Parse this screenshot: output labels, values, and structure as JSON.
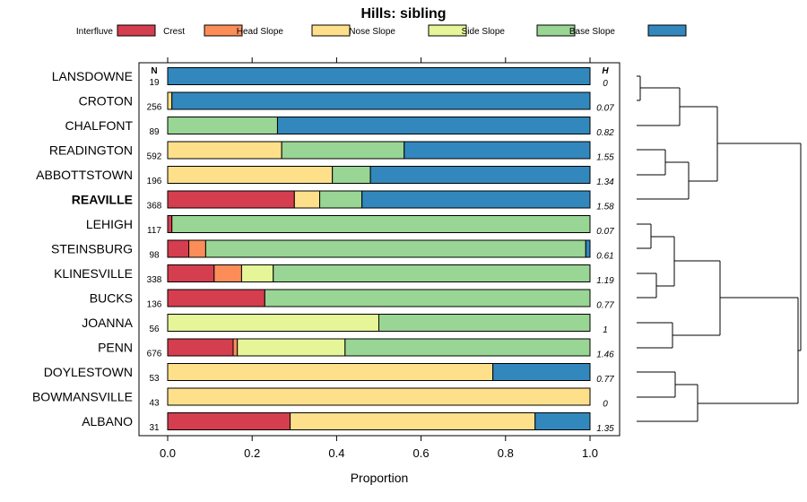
{
  "chart_data": {
    "type": "bar",
    "subtype": "stacked-horizontal-proportion",
    "title": "Hills: sibling",
    "xlabel": "Proportion",
    "ylabel": "",
    "xlim": [
      0,
      1
    ],
    "x_ticks": [
      "0.0",
      "0.2",
      "0.4",
      "0.6",
      "0.8",
      "1.0"
    ],
    "x_tick_values": [
      0,
      0.2,
      0.4,
      0.6,
      0.8,
      1.0
    ],
    "n_header": "N",
    "h_header": "H",
    "legend_position": "top",
    "series": [
      {
        "name": "Interfluve",
        "color": "#d53e4f"
      },
      {
        "name": "Crest",
        "color": "#fc8d59"
      },
      {
        "name": "Head Slope",
        "color": "#fee08b"
      },
      {
        "name": "Nose Slope",
        "color": "#e6f598"
      },
      {
        "name": "Side Slope",
        "color": "#99d594"
      },
      {
        "name": "Base Slope",
        "color": "#3288bd"
      }
    ],
    "categories": [
      {
        "label": "LANSDOWNE",
        "n": "19",
        "h": "0",
        "bold": false,
        "values": [
          0,
          0,
          0,
          0,
          0,
          1.0
        ]
      },
      {
        "label": "CROTON",
        "n": "256",
        "h": "0.07",
        "bold": false,
        "values": [
          0,
          0,
          0.01,
          0,
          0,
          0.99
        ]
      },
      {
        "label": "CHALFONT",
        "n": "89",
        "h": "0.82",
        "bold": false,
        "values": [
          0,
          0,
          0,
          0,
          0.26,
          0.74
        ]
      },
      {
        "label": "READINGTON",
        "n": "592",
        "h": "1.55",
        "bold": false,
        "values": [
          0,
          0,
          0.27,
          0,
          0.29,
          0.44
        ]
      },
      {
        "label": "ABBOTTSTOWN",
        "n": "196",
        "h": "1.34",
        "bold": false,
        "values": [
          0,
          0,
          0.39,
          0,
          0.09,
          0.52
        ]
      },
      {
        "label": "REAVILLE",
        "n": "368",
        "h": "1.58",
        "bold": true,
        "values": [
          0.3,
          0,
          0.06,
          0,
          0.1,
          0.54
        ]
      },
      {
        "label": "LEHIGH",
        "n": "117",
        "h": "0.07",
        "bold": false,
        "values": [
          0.01,
          0,
          0,
          0,
          0.99,
          0
        ]
      },
      {
        "label": "STEINSBURG",
        "n": "98",
        "h": "0.61",
        "bold": false,
        "values": [
          0.05,
          0.04,
          0,
          0,
          0.9,
          0.01
        ]
      },
      {
        "label": "KLINESVILLE",
        "n": "338",
        "h": "1.19",
        "bold": false,
        "values": [
          0.11,
          0.065,
          0,
          0.075,
          0.75,
          0
        ]
      },
      {
        "label": "BUCKS",
        "n": "136",
        "h": "0.77",
        "bold": false,
        "values": [
          0.23,
          0,
          0,
          0,
          0.77,
          0
        ]
      },
      {
        "label": "JOANNA",
        "n": "56",
        "h": "1",
        "bold": false,
        "values": [
          0,
          0,
          0,
          0.5,
          0.5,
          0
        ]
      },
      {
        "label": "PENN",
        "n": "676",
        "h": "1.46",
        "bold": false,
        "values": [
          0.155,
          0.01,
          0,
          0.255,
          0.58,
          0
        ]
      },
      {
        "label": "DOYLESTOWN",
        "n": "53",
        "h": "0.77",
        "bold": false,
        "values": [
          0,
          0,
          0.77,
          0,
          0,
          0.23
        ]
      },
      {
        "label": "BOWMANSVILLE",
        "n": "43",
        "h": "0",
        "bold": false,
        "values": [
          0,
          0,
          1.0,
          0,
          0,
          0
        ]
      },
      {
        "label": "ALBANO",
        "n": "31",
        "h": "1.35",
        "bold": false,
        "values": [
          0.29,
          0,
          0.58,
          0,
          0,
          0.13
        ]
      }
    ]
  }
}
